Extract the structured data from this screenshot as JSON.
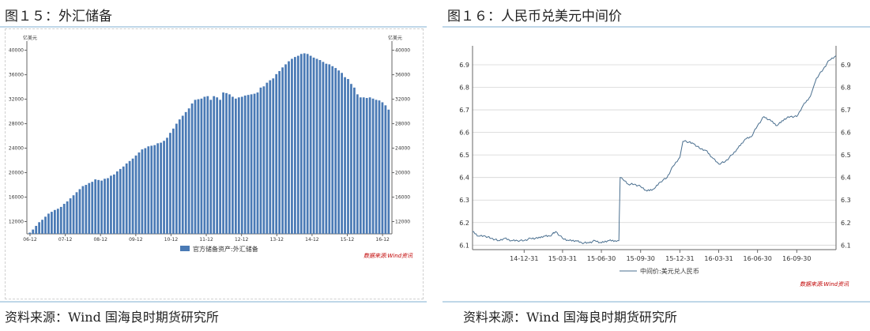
{
  "left_panel": {
    "title": "图１５：外汇储备",
    "source": "资料来源：Wind 国海良时期货研究所",
    "watermark": "数据来源:Wind资讯",
    "bar_color": "#4a7ab5"
  },
  "right_panel": {
    "title": "图１６：人民币兑美元中间价",
    "source": "资料来源：Wind 国海良时期货研究所",
    "watermark": "数据来源:Wind资讯",
    "line_color": "#4a6f8f"
  },
  "chart_data": [
    {
      "type": "bar",
      "title": "图１５：外汇储备",
      "series": [
        {
          "name": "官方储备资产:外汇储备",
          "values": [
            10200,
            10700,
            11300,
            11900,
            12300,
            12800,
            13300,
            13600,
            13900,
            14100,
            14400,
            14900,
            15300,
            15800,
            16300,
            16800,
            17300,
            17800,
            18000,
            18300,
            18500,
            18900,
            18800,
            18700,
            19000,
            19100,
            19500,
            19700,
            20200,
            20600,
            21000,
            21500,
            21900,
            22300,
            22800,
            23300,
            23800,
            24000,
            24300,
            24400,
            24500,
            24800,
            24900,
            25200,
            25700,
            26500,
            27200,
            28000,
            28700,
            29300,
            29900,
            30500,
            31300,
            31900,
            32000,
            32100,
            32400,
            32500,
            31900,
            32500,
            32300,
            31900,
            33100,
            33000,
            32800,
            32400,
            32100,
            32300,
            32400,
            32600,
            32700,
            32800,
            32900,
            33100,
            33900,
            34100,
            34700,
            35100,
            35400,
            36100,
            36600,
            37200,
            37700,
            38200,
            38600,
            38900,
            39100,
            39400,
            39500,
            39400,
            39100,
            38800,
            38600,
            38400,
            38100,
            37800,
            37700,
            37400,
            37100,
            36700,
            36300,
            35600,
            35300,
            34500,
            33900,
            32800,
            32300,
            32300,
            32200,
            32300,
            32100,
            31900,
            31800,
            31500,
            31000,
            30300
          ]
        }
      ],
      "tick_labels": [
        "06-12",
        "07-12",
        "08-12",
        "09-12",
        "10-12",
        "11-12",
        "12-12",
        "13-12",
        "14-12",
        "15-12",
        "16-12"
      ],
      "yticks": [
        12000,
        16000,
        20000,
        24000,
        28000,
        32000,
        36000,
        40000
      ],
      "ylim": [
        10000,
        41500
      ],
      "ylabel_left": "亿美元",
      "ylabel_right": "亿美元",
      "legend": "官方储备资产:外汇储备",
      "legend_position": "bottom-center",
      "grid": false
    },
    {
      "type": "line",
      "title": "图１６：人民币兑美元中间价",
      "series": [
        {
          "name": "中间价:美元兑人民币",
          "x": [
            "2014-09-01",
            "2014-09-15",
            "2014-10-01",
            "2014-10-15",
            "2014-11-01",
            "2014-11-15",
            "2014-12-01",
            "2014-12-15",
            "2014-12-31",
            "2015-01-15",
            "2015-02-01",
            "2015-02-15",
            "2015-03-01",
            "2015-03-15",
            "2015-03-31",
            "2015-04-15",
            "2015-05-01",
            "2015-05-15",
            "2015-06-01",
            "2015-06-15",
            "2015-06-30",
            "2015-07-15",
            "2015-08-01",
            "2015-08-10",
            "2015-08-11",
            "2015-08-13",
            "2015-08-20",
            "2015-09-01",
            "2015-09-15",
            "2015-09-30",
            "2015-10-15",
            "2015-11-01",
            "2015-11-15",
            "2015-12-01",
            "2015-12-15",
            "2015-12-31",
            "2016-01-07",
            "2016-01-15",
            "2016-02-01",
            "2016-02-15",
            "2016-03-01",
            "2016-03-15",
            "2016-03-31",
            "2016-04-15",
            "2016-05-01",
            "2016-05-15",
            "2016-06-01",
            "2016-06-15",
            "2016-06-30",
            "2016-07-15",
            "2016-08-01",
            "2016-08-15",
            "2016-09-01",
            "2016-09-15",
            "2016-09-30",
            "2016-10-15",
            "2016-11-01",
            "2016-11-15",
            "2016-12-01",
            "2016-12-15",
            "2016-12-31"
          ],
          "y": [
            6.16,
            6.14,
            6.14,
            6.13,
            6.12,
            6.13,
            6.12,
            6.12,
            6.12,
            6.13,
            6.13,
            6.14,
            6.14,
            6.16,
            6.13,
            6.12,
            6.12,
            6.11,
            6.11,
            6.12,
            6.11,
            6.12,
            6.12,
            6.12,
            6.22,
            6.4,
            6.39,
            6.37,
            6.37,
            6.36,
            6.34,
            6.35,
            6.38,
            6.4,
            6.45,
            6.49,
            6.56,
            6.56,
            6.55,
            6.53,
            6.52,
            6.49,
            6.46,
            6.47,
            6.5,
            6.53,
            6.57,
            6.58,
            6.63,
            6.67,
            6.65,
            6.63,
            6.66,
            6.67,
            6.67,
            6.72,
            6.76,
            6.84,
            6.88,
            6.92,
            6.94
          ]
        }
      ],
      "tick_labels": [
        "14-12-31",
        "15-03-31",
        "15-06-30",
        "15-09-30",
        "15-12-31",
        "16-03-31",
        "16-06-30",
        "16-09-30"
      ],
      "yticks": [
        6.1,
        6.2,
        6.3,
        6.4,
        6.5,
        6.6,
        6.7,
        6.8,
        6.9
      ],
      "ylim": [
        6.08,
        6.97
      ],
      "legend": "中间价:美元兑人民币",
      "legend_position": "bottom-center",
      "grid": true
    }
  ]
}
